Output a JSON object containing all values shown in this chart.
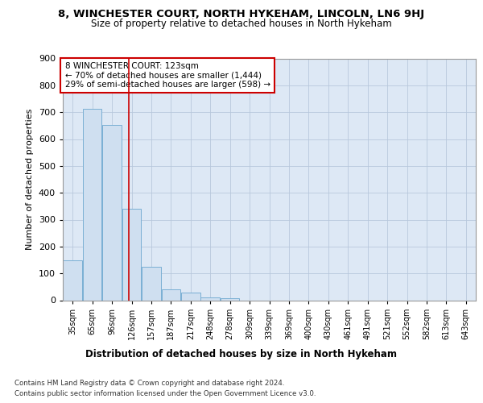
{
  "title": "8, WINCHESTER COURT, NORTH HYKEHAM, LINCOLN, LN6 9HJ",
  "subtitle": "Size of property relative to detached houses in North Hykeham",
  "xlabel": "Distribution of detached houses by size in North Hykeham",
  "ylabel": "Number of detached properties",
  "bar_color": "#cfdff0",
  "bar_edge_color": "#7aafd4",
  "background_color": "#dde8f5",
  "grid_color": "#b8c8dc",
  "annotation_text_line1": "8 WINCHESTER COURT: 123sqm",
  "annotation_text_line2": "← 70% of detached houses are smaller (1,444)",
  "annotation_text_line3": "29% of semi-detached houses are larger (598) →",
  "footer_line1": "Contains HM Land Registry data © Crown copyright and database right 2024.",
  "footer_line2": "Contains public sector information licensed under the Open Government Licence v3.0.",
  "bin_labels": [
    "35sqm",
    "65sqm",
    "96sqm",
    "126sqm",
    "157sqm",
    "187sqm",
    "217sqm",
    "248sqm",
    "278sqm",
    "309sqm",
    "339sqm",
    "369sqm",
    "400sqm",
    "430sqm",
    "461sqm",
    "491sqm",
    "521sqm",
    "552sqm",
    "582sqm",
    "613sqm",
    "643sqm"
  ],
  "bar_heights": [
    150,
    713,
    652,
    342,
    126,
    40,
    30,
    11,
    9,
    0,
    0,
    0,
    0,
    0,
    0,
    0,
    0,
    0,
    0,
    0,
    0
  ],
  "annotation_line_bin": 2.85,
  "ylim": [
    0,
    900
  ],
  "yticks": [
    0,
    100,
    200,
    300,
    400,
    500,
    600,
    700,
    800,
    900
  ]
}
